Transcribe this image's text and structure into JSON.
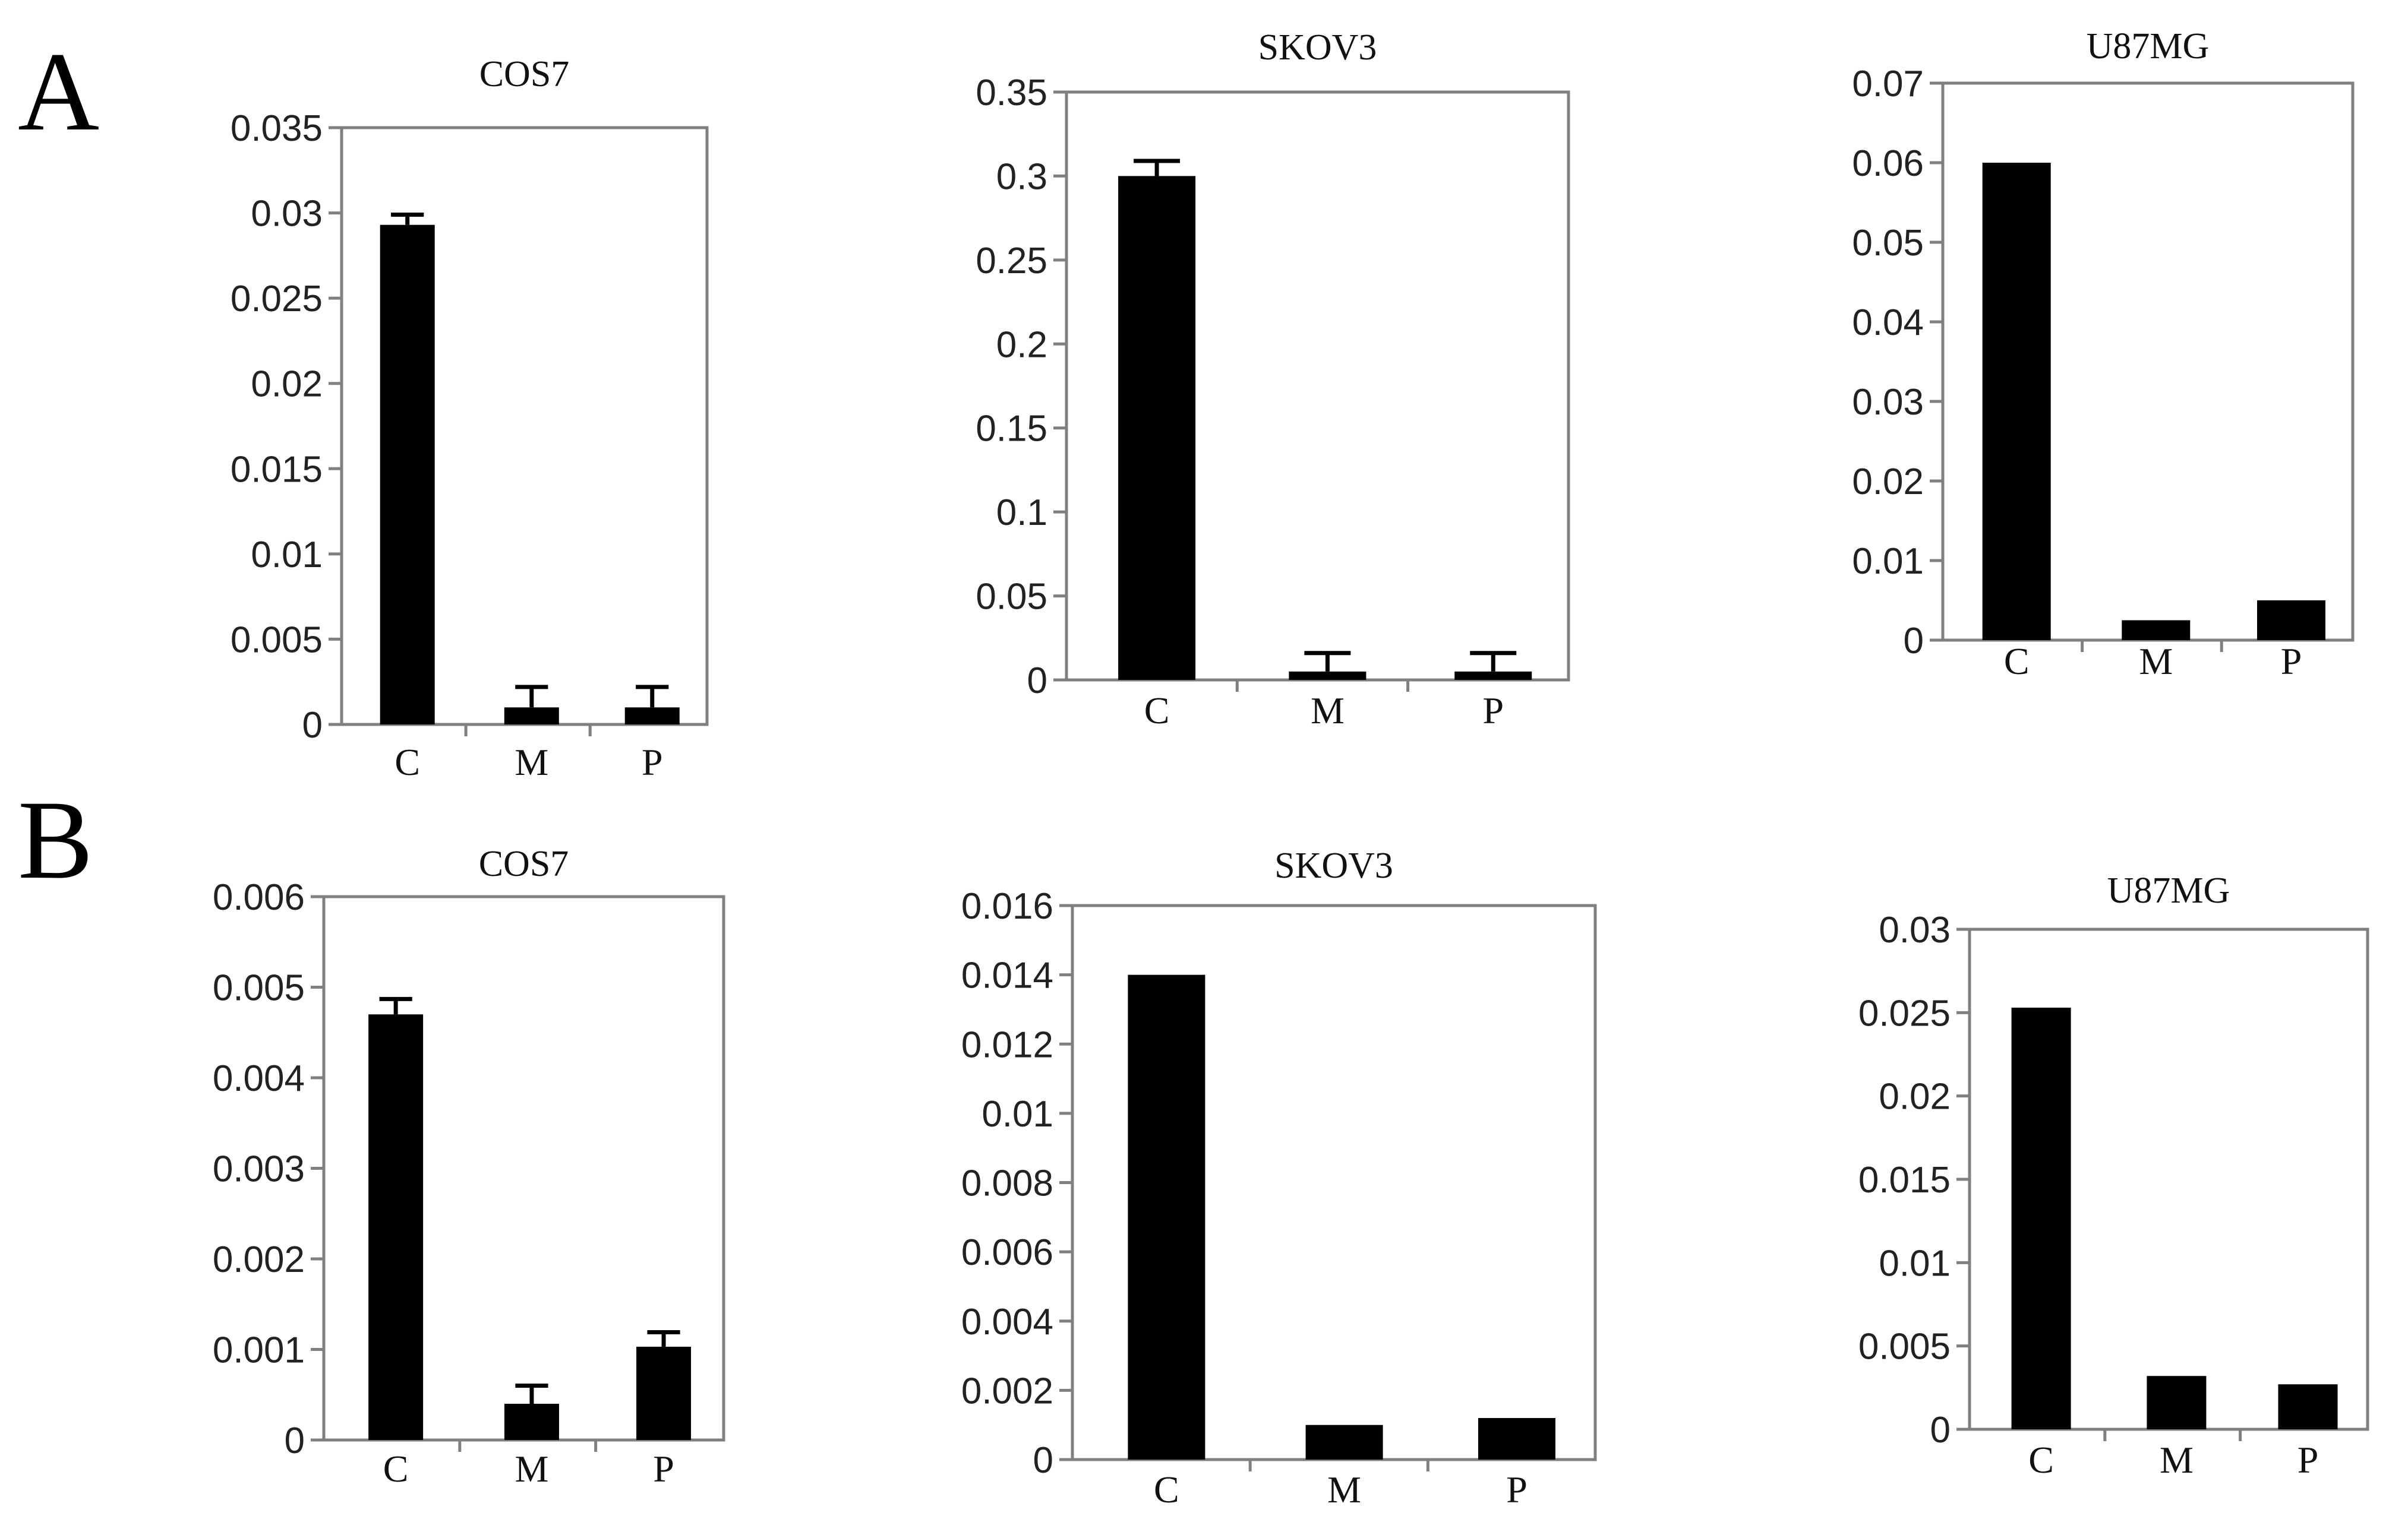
{
  "panels": {
    "a_letter": "A",
    "b_letter": "B"
  },
  "colors": {
    "bar": "#000000",
    "axis": "#808080",
    "background": "#ffffff"
  },
  "chart_data": [
    {
      "id": "A-COS7",
      "type": "bar",
      "title": "COS7",
      "categories": [
        "C",
        "M",
        "P"
      ],
      "values": [
        0.0293,
        0.001,
        0.001
      ],
      "errors": [
        0.0006,
        0.0012,
        0.0012
      ],
      "ylim": [
        0,
        0.035
      ],
      "yticks": [
        0,
        0.005,
        0.01,
        0.015,
        0.02,
        0.025,
        0.03,
        0.035
      ],
      "ytick_labels": [
        "0",
        "0.005",
        "0.01",
        "0.015",
        "0.02",
        "0.025",
        "0.03",
        "0.035"
      ],
      "xlabel": "",
      "ylabel": "",
      "grid": false
    },
    {
      "id": "A-SKOV3",
      "type": "bar",
      "title": "SKOV3",
      "categories": [
        "C",
        "M",
        "P"
      ],
      "values": [
        0.3,
        0.005,
        0.005
      ],
      "errors": [
        0.009,
        0.011,
        0.011
      ],
      "ylim": [
        0,
        0.35
      ],
      "yticks": [
        0,
        0.05,
        0.1,
        0.15,
        0.2,
        0.25,
        0.3,
        0.35
      ],
      "ytick_labels": [
        "0",
        "0.05",
        "0.1",
        "0.15",
        "0.2",
        "0.25",
        "0.3",
        "0.35"
      ],
      "xlabel": "",
      "ylabel": "",
      "grid": false
    },
    {
      "id": "A-U87MG",
      "type": "bar",
      "title": "U87MG",
      "categories": [
        "C",
        "M",
        "P"
      ],
      "values": [
        0.06,
        0.0025,
        0.005
      ],
      "errors": null,
      "ylim": [
        0,
        0.07
      ],
      "yticks": [
        0,
        0.01,
        0.02,
        0.03,
        0.04,
        0.05,
        0.06,
        0.07
      ],
      "ytick_labels": [
        "0",
        "0.01",
        "0.02",
        "0.03",
        "0.04",
        "0.05",
        "0.06",
        "0.07"
      ],
      "xlabel": "",
      "ylabel": "",
      "grid": false
    },
    {
      "id": "B-COS7",
      "type": "bar",
      "title": "COS7",
      "categories": [
        "C",
        "M",
        "P"
      ],
      "values": [
        0.0047,
        0.0004,
        0.00103
      ],
      "errors": [
        0.00017,
        0.0002,
        0.00016
      ],
      "ylim": [
        0,
        0.006
      ],
      "yticks": [
        0,
        0.001,
        0.002,
        0.003,
        0.004,
        0.005,
        0.006
      ],
      "ytick_labels": [
        "0",
        "0.001",
        "0.002",
        "0.003",
        "0.004",
        "0.005",
        "0.006"
      ],
      "xlabel": "",
      "ylabel": "",
      "grid": false
    },
    {
      "id": "B-SKOV3",
      "type": "bar",
      "title": "SKOV3",
      "categories": [
        "C",
        "M",
        "P"
      ],
      "values": [
        0.014,
        0.001,
        0.0012
      ],
      "errors": null,
      "ylim": [
        0,
        0.016
      ],
      "yticks": [
        0,
        0.002,
        0.004,
        0.006,
        0.008,
        0.01,
        0.012,
        0.014,
        0.016
      ],
      "ytick_labels": [
        "0",
        "0.002",
        "0.004",
        "0.006",
        "0.008",
        "0.01",
        "0.012",
        "0.014",
        "0.016"
      ],
      "xlabel": "",
      "ylabel": "",
      "grid": false
    },
    {
      "id": "B-U87MG",
      "type": "bar",
      "title": "U87MG",
      "categories": [
        "C",
        "M",
        "P"
      ],
      "values": [
        0.0253,
        0.0032,
        0.0027
      ],
      "errors": null,
      "ylim": [
        0,
        0.03
      ],
      "yticks": [
        0,
        0.005,
        0.01,
        0.015,
        0.02,
        0.025,
        0.03
      ],
      "ytick_labels": [
        "0",
        "0.005",
        "0.01",
        "0.015",
        "0.02",
        "0.025",
        "0.03"
      ],
      "xlabel": "",
      "ylabel": "",
      "grid": false
    }
  ]
}
